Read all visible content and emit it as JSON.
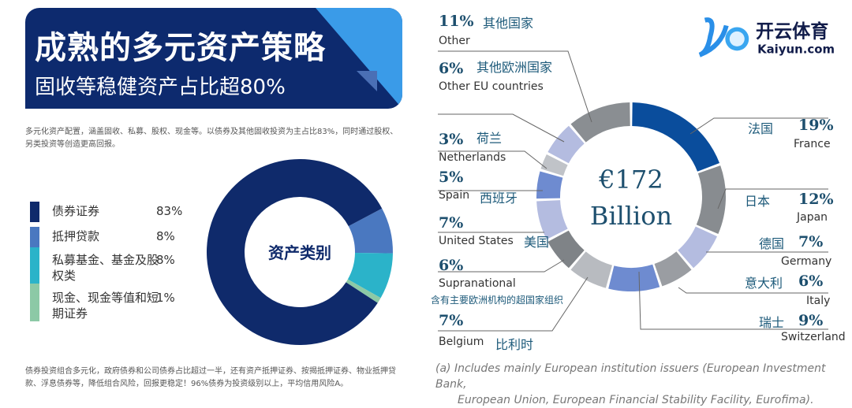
{
  "left": {
    "title": "成熟的多元资产策略",
    "subtitle": "固收等稳健资产占比超80%",
    "intro": "多元化资产配置，涵盖固收、私募、股权、现金等。以债券及其他固收投资为主占比83%，同时通过股权、另类投资等创造更高回报。",
    "footer": "债券投资组合多元化，政府债券和公司债券占比超过一半，还有资产抵押证券、按揭抵押证券、物业抵押贷款、浮息债券等，降低组合风险，回报更稳定！96%债券为投资级别以上，平均信用风险A。",
    "center_label": "资产类别"
  },
  "right": {
    "center_value": "€172",
    "center_unit": "Billion",
    "footnote_line1": "(a)  Includes mainly European institution issuers (European Investment Bank,",
    "footnote_line2": "European Union, European Financial Stability Facility, Eurofima)."
  },
  "logo": {
    "text_cn": "开云体育",
    "text_en": "Kaiyun.com"
  },
  "chart_data": [
    {
      "type": "pie",
      "donut": true,
      "categories": [
        "债券证券",
        "抵押贷款",
        "私募基金、基金及股权类",
        "现金、现金等值和短期证券"
      ],
      "values": [
        83,
        8,
        8,
        1
      ],
      "labels": [
        "83%",
        "8%",
        "8%",
        "1%"
      ],
      "colors": [
        "#0f2a6b",
        "#4a78c0",
        "#2bb3c9",
        "#8cc9a6"
      ],
      "legend": "left"
    },
    {
      "type": "pie",
      "donut": true,
      "categories": [
        "France",
        "Japan",
        "Germany",
        "Italy",
        "Switzerland",
        "Belgium",
        "Supranational",
        "United States",
        "Spain",
        "Netherlands",
        "Other EU countries",
        "Other"
      ],
      "categories_cn": [
        "法国",
        "日本",
        "德国",
        "意大利",
        "瑞士",
        "比利时",
        "含有主要欧洲机构的超国家组织",
        "美国",
        "西班牙",
        "荷兰",
        "其他欧洲国家",
        "其他国家"
      ],
      "values": [
        19,
        12,
        7,
        6,
        9,
        7,
        6,
        7,
        5,
        3,
        6,
        11
      ],
      "labels": [
        "19%",
        "12%",
        "7%",
        "6%",
        "9%",
        "7%",
        "6%",
        "7%",
        "5%",
        "3%",
        "6%",
        "11%"
      ],
      "colors": [
        "#0a4d9c",
        "#888c90",
        "#b4bce0",
        "#9a9da2",
        "#6e8bd0",
        "#b8bbc0",
        "#7f8387",
        "#b4bce0",
        "#6e8bd0",
        "#c0c3c8",
        "#b4bce0",
        "#8a8e92"
      ]
    }
  ]
}
